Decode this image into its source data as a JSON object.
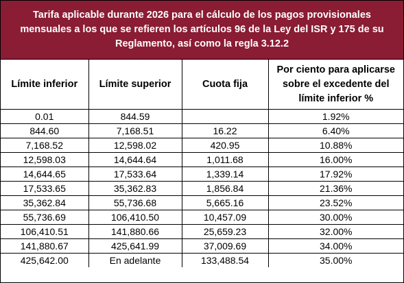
{
  "title": "Tarifa aplicable durante 2026 para el cálculo de los pagos provisionales mensuales a los que se refieren los artículos 96 de la Ley del ISR y 175 de su Reglamento, así como la regla 3.12.2",
  "headers": [
    "Límite inferior",
    "Límite superior",
    "Cuota fija",
    "Por ciento para aplicarse sobre el excedente del límite inferior %"
  ],
  "rows": [
    [
      "0.01",
      "844.59",
      "",
      "1.92%"
    ],
    [
      "844.60",
      "7,168.51",
      "16.22",
      "6.40%"
    ],
    [
      "7,168.52",
      "12,598.02",
      "420.95",
      "10.88%"
    ],
    [
      "12,598.03",
      "14,644.64",
      "1,011.68",
      "16.00%"
    ],
    [
      "14,644.65",
      "17,533.64",
      "1,339.14",
      "17.92%"
    ],
    [
      "17,533.65",
      "35,362.83",
      "1,856.84",
      "21.36%"
    ],
    [
      "35,362.84",
      "55,736.68",
      "5,665.16",
      "23.52%"
    ],
    [
      "55,736.69",
      "106,410.50",
      "10,457.09",
      "30.00%"
    ],
    [
      "106,410.51",
      "141,880.66",
      "25,659.23",
      "32.00%"
    ],
    [
      "141,880.67",
      "425,641.99",
      "37,009.69",
      "34.00%"
    ],
    [
      "425,642.00",
      "En adelante",
      "133,488.54",
      "35.00%"
    ]
  ],
  "colors": {
    "header_bg": "#8a1c34",
    "header_text": "#ffffff"
  }
}
